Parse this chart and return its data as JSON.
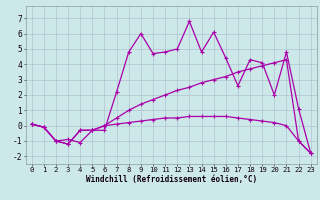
{
  "xlabel": "Windchill (Refroidissement éolien,°C)",
  "background_color": "#cce8e8",
  "grid_color": "#aabbc8",
  "line_color": "#aa00aa",
  "xlim": [
    -0.5,
    23.5
  ],
  "ylim": [
    -2.5,
    7.8
  ],
  "xticks": [
    0,
    1,
    2,
    3,
    4,
    5,
    6,
    7,
    8,
    9,
    10,
    11,
    12,
    13,
    14,
    15,
    16,
    17,
    18,
    19,
    20,
    21,
    22,
    23
  ],
  "yticks": [
    -2,
    -1,
    0,
    1,
    2,
    3,
    4,
    5,
    6,
    7
  ],
  "series": [
    [
      0.1,
      -0.1,
      -1.0,
      -0.9,
      -1.1,
      -0.3,
      -0.3,
      2.2,
      4.8,
      6.0,
      4.7,
      4.8,
      5.0,
      6.8,
      4.8,
      6.1,
      4.4,
      2.6,
      4.3,
      4.1,
      2.0,
      4.8,
      1.1,
      -1.8
    ],
    [
      0.1,
      -0.1,
      -1.0,
      -1.2,
      -0.3,
      -0.3,
      0.0,
      0.5,
      1.0,
      1.4,
      1.7,
      2.0,
      2.3,
      2.5,
      2.8,
      3.0,
      3.2,
      3.5,
      3.7,
      3.9,
      4.1,
      4.3,
      -1.0,
      -1.8
    ],
    [
      0.1,
      -0.1,
      -1.0,
      -1.2,
      -0.3,
      -0.3,
      0.0,
      0.1,
      0.2,
      0.3,
      0.4,
      0.5,
      0.5,
      0.6,
      0.6,
      0.6,
      0.6,
      0.5,
      0.4,
      0.3,
      0.2,
      0.0,
      -1.0,
      -1.8
    ]
  ],
  "xlabel_fontsize": 5.5,
  "tick_fontsize": 5.2,
  "linewidth": 0.9,
  "markersize": 3.0
}
